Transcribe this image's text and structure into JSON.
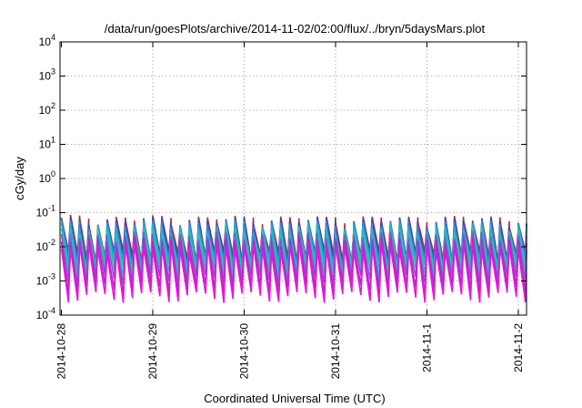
{
  "chart_data": {
    "type": "line",
    "title": "/data/run/goesPlots/archive/2014-11-02/02:00/flux/../bryn/5daysMars.plot",
    "xlabel": "Coordinated Universal Time (UTC)",
    "ylabel": "cGy/day",
    "yscale": "log",
    "ylim": [
      0.0001,
      10000
    ],
    "xlim": [
      "2014-10-28",
      "2014-11-02 02:00"
    ],
    "x_ticks": [
      "2014-10-28",
      "2014-10-29",
      "2014-10-30",
      "2014-10-31",
      "2014-11-1",
      "2014-11-2"
    ],
    "y_ticks": [
      {
        "value": 0.0001,
        "mantissa": "10",
        "exp": "-4"
      },
      {
        "value": 0.001,
        "mantissa": "10",
        "exp": "-3"
      },
      {
        "value": 0.01,
        "mantissa": "10",
        "exp": "-2"
      },
      {
        "value": 0.1,
        "mantissa": "10",
        "exp": "-1"
      },
      {
        "value": 1,
        "mantissa": "10",
        "exp": "0"
      },
      {
        "value": 10,
        "mantissa": "10",
        "exp": "1"
      },
      {
        "value": 100,
        "mantissa": "10",
        "exp": "2"
      },
      {
        "value": 1000,
        "mantissa": "10",
        "exp": "3"
      },
      {
        "value": 10000,
        "mantissa": "10",
        "exp": "4"
      }
    ],
    "grid": true,
    "legend": "none",
    "cycles_per_day": 10,
    "series": [
      {
        "color": "#d81b2a",
        "peak": 0.062,
        "trough": 0.0055
      },
      {
        "color": "#1f4fd6",
        "peak": 0.055,
        "trough": 0.0045
      },
      {
        "color": "#2a8fd8",
        "peak": 0.045,
        "trough": 0.0035
      },
      {
        "color": "#1fb7c4",
        "peak": 0.035,
        "trough": 0.0026
      },
      {
        "color": "#2bc3a8",
        "peak": 0.026,
        "trough": 0.0018
      },
      {
        "color": "#8a4fd6",
        "peak": 0.02,
        "trough": 0.0011
      },
      {
        "color": "#c11fc8",
        "peak": 0.014,
        "trough": 0.0006
      },
      {
        "color": "#e01ad8",
        "peak": 0.01,
        "trough": 0.00035
      }
    ]
  }
}
